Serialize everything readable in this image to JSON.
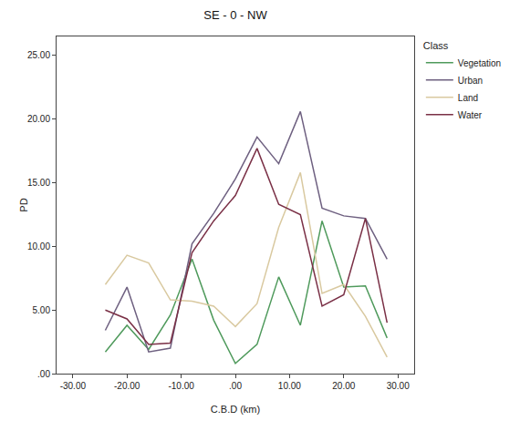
{
  "chart_data": {
    "type": "line",
    "title": "SE - 0 - NW",
    "x_label": "C.B.D (km)",
    "y_label": "PD",
    "legend_title": "Class",
    "legend": "top right",
    "grid": false,
    "x": [
      -24,
      -20,
      -16,
      -12,
      -8,
      -4,
      0,
      4,
      8,
      12,
      16,
      20,
      24,
      28
    ],
    "series": [
      {
        "name": "Vegetation",
        "color": "#4f9a5c",
        "line_style": "solid",
        "values": [
          1.7,
          3.8,
          1.9,
          4.6,
          9.0,
          4.2,
          0.8,
          2.3,
          7.6,
          3.8,
          12.0,
          6.8,
          6.9,
          2.8
        ]
      },
      {
        "name": "Urban",
        "color": "#6e6080",
        "line_style": "solid",
        "values": [
          3.4,
          6.8,
          1.7,
          2.0,
          10.2,
          12.6,
          15.3,
          18.6,
          16.5,
          20.6,
          13.0,
          12.4,
          12.2,
          9.0
        ]
      },
      {
        "name": "Land",
        "color": "#d9c9a0",
        "line_style": "solid",
        "values": [
          7.0,
          9.3,
          8.7,
          5.8,
          5.7,
          5.3,
          3.7,
          5.5,
          11.5,
          15.8,
          6.3,
          7.0,
          4.5,
          1.3
        ]
      },
      {
        "name": "Water",
        "color": "#7a3046",
        "line_style": "solid",
        "values": [
          5.0,
          4.3,
          2.3,
          2.4,
          9.5,
          12.0,
          14.0,
          17.7,
          13.3,
          12.5,
          5.3,
          6.2,
          12.2,
          4.0
        ]
      }
    ],
    "xlim": [
      -33,
      33
    ],
    "xticks": [
      {
        "value": -30,
        "label": "-30.00"
      },
      {
        "value": -20,
        "label": "-20.00"
      },
      {
        "value": -10,
        "label": "-10.00"
      },
      {
        "value": 0,
        "label": ".00"
      },
      {
        "value": 10,
        "label": "10.00"
      },
      {
        "value": 20,
        "label": "20.00"
      },
      {
        "value": 30,
        "label": "30.00"
      }
    ],
    "ylim": [
      0,
      26.5
    ],
    "yticks": [
      {
        "value": 0,
        "label": ".00"
      },
      {
        "value": 5,
        "label": "5.00"
      },
      {
        "value": 10,
        "label": "10.00"
      },
      {
        "value": 15,
        "label": "15.00"
      },
      {
        "value": 20,
        "label": "20.00"
      },
      {
        "value": 25,
        "label": "25.00"
      }
    ]
  }
}
